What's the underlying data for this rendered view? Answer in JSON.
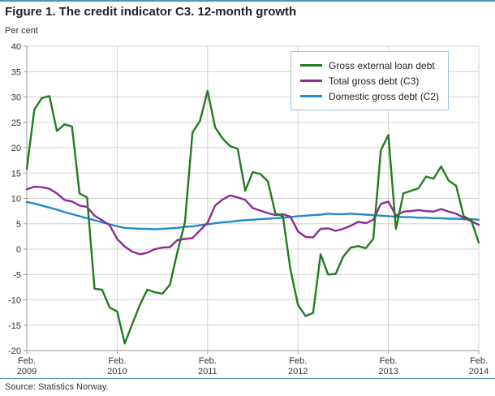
{
  "figure": {
    "title": "Figure 1. The credit indicator C3. 12-month growth",
    "source": "Source: Statistics Norway."
  },
  "chart_data": {
    "type": "line",
    "title": "Figure 1. The credit indicator C3. 12-month growth",
    "ylabel": "Per cent",
    "xlabel": "",
    "ylim": [
      -20,
      40
    ],
    "ytick_step": 5,
    "grid": true,
    "legend_position": "top-right",
    "x_count": 61,
    "x_ticks": [
      {
        "index": 0,
        "line1": "Feb.",
        "line2": "2009"
      },
      {
        "index": 12,
        "line1": "Feb.",
        "line2": "2010"
      },
      {
        "index": 24,
        "line1": "Feb.",
        "line2": "2011"
      },
      {
        "index": 36,
        "line1": "Feb.",
        "line2": "2012"
      },
      {
        "index": 48,
        "line1": "Feb.",
        "line2": "2013"
      },
      {
        "index": 60,
        "line1": "Feb.",
        "line2": "2014"
      }
    ],
    "x_note": "monthly observations from Feb. 2009 to Feb. 2014",
    "series": [
      {
        "name": "Gross external loan debt",
        "color": "#1f7d1f",
        "values": [
          15.8,
          27.5,
          29.8,
          30.2,
          23.3,
          24.6,
          24.2,
          11.0,
          10.2,
          -7.8,
          -8.0,
          -11.5,
          -12.3,
          -18.6,
          -14.8,
          -11.0,
          -8.0,
          -8.5,
          -8.8,
          -7.0,
          -0.5,
          5.3,
          23.0,
          25.3,
          31.2,
          24.0,
          21.8,
          20.3,
          19.8,
          11.5,
          15.2,
          14.8,
          13.4,
          7.0,
          6.5,
          -4.0,
          -11.0,
          -13.2,
          -12.6,
          -1.0,
          -5.0,
          -4.9,
          -1.5,
          0.3,
          0.6,
          0.2,
          2.0,
          19.5,
          22.5,
          4.0,
          11.0,
          11.5,
          12.0,
          14.3,
          13.9,
          16.3,
          13.5,
          12.5,
          6.5,
          5.7,
          1.3
        ]
      },
      {
        "name": "Total gross debt (C3)",
        "color": "#8e2b91",
        "values": [
          11.8,
          12.3,
          12.2,
          11.9,
          11.0,
          9.7,
          9.4,
          8.6,
          8.3,
          6.6,
          5.7,
          4.7,
          2.0,
          0.5,
          -0.5,
          -1.0,
          -0.7,
          0.0,
          0.3,
          0.4,
          1.8,
          2.0,
          2.2,
          3.7,
          5.2,
          8.6,
          9.8,
          10.6,
          10.2,
          9.7,
          8.1,
          7.6,
          7.1,
          6.7,
          6.9,
          6.4,
          3.5,
          2.4,
          2.3,
          4.0,
          4.1,
          3.6,
          4.0,
          4.6,
          5.4,
          5.1,
          5.8,
          8.9,
          9.4,
          6.6,
          7.4,
          7.5,
          7.7,
          7.5,
          7.4,
          7.9,
          7.4,
          7.0,
          6.2,
          5.5,
          4.8
        ]
      },
      {
        "name": "Domestic gross debt (C2)",
        "color": "#2289cc",
        "values": [
          9.3,
          9.0,
          8.6,
          8.2,
          7.8,
          7.3,
          6.9,
          6.5,
          6.1,
          5.7,
          5.3,
          4.9,
          4.5,
          4.2,
          4.1,
          4.0,
          4.0,
          3.9,
          4.0,
          4.1,
          4.2,
          4.4,
          4.5,
          4.7,
          4.9,
          5.1,
          5.3,
          5.4,
          5.6,
          5.7,
          5.8,
          5.9,
          6.0,
          6.1,
          6.2,
          6.3,
          6.5,
          6.6,
          6.7,
          6.8,
          7.0,
          6.9,
          6.9,
          7.0,
          6.9,
          6.8,
          6.7,
          6.6,
          6.5,
          6.4,
          6.3,
          6.3,
          6.2,
          6.2,
          6.1,
          6.1,
          6.0,
          6.0,
          5.9,
          5.9,
          5.8
        ]
      }
    ]
  }
}
